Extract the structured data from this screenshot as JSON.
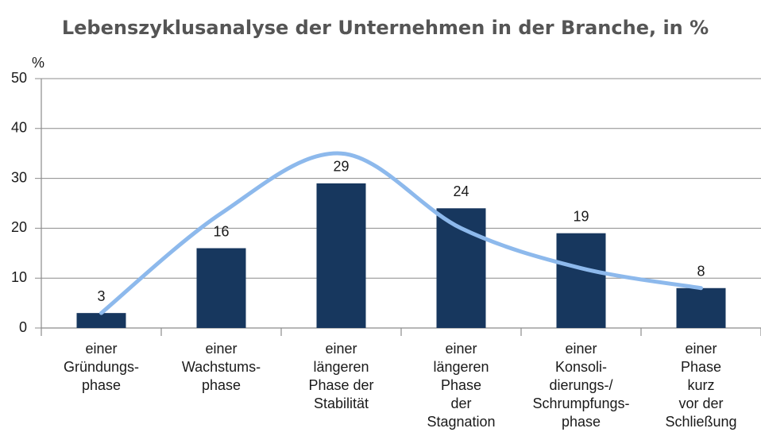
{
  "chart_data": {
    "type": "bar",
    "title": "Lebenszyklusanalyse der Unternehmen in der Branche, in %",
    "y_label": "%",
    "categories": [
      [
        "einer",
        "Gründungs-",
        "phase"
      ],
      [
        "einer",
        "Wachstums-",
        "phase"
      ],
      [
        "einer",
        "längeren",
        "Phase der",
        "Stabilität"
      ],
      [
        "einer",
        "längeren",
        "Phase",
        "der",
        "Stagnation"
      ],
      [
        "einer",
        "Konsoli-",
        "dierungs-/",
        "Schrumpfungs-",
        "phase"
      ],
      [
        "einer",
        "Phase",
        "kurz",
        "vor der",
        "Schließung"
      ]
    ],
    "series": [
      {
        "type": "bar",
        "color": "#17375e",
        "values": [
          3,
          16,
          29,
          24,
          19,
          8
        ]
      },
      {
        "type": "line",
        "color": "#8db9ec",
        "values": [
          3,
          23,
          35,
          20,
          12,
          8
        ]
      }
    ],
    "ylim": [
      0,
      50
    ],
    "yticks": [
      0,
      10,
      20,
      30,
      40,
      50
    ],
    "grid": true
  }
}
